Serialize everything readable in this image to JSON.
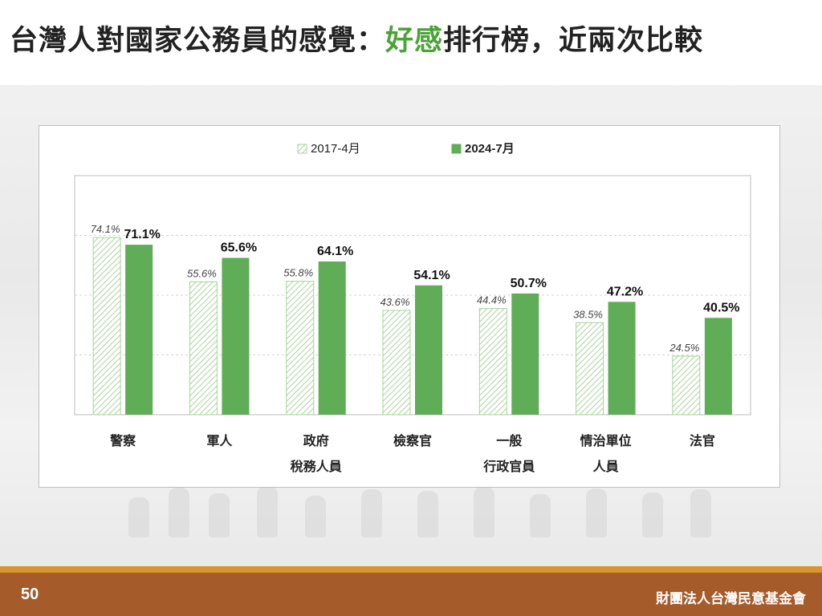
{
  "slide": {
    "title_part1": "台灣人對國家公務員的感覺：",
    "title_highlight": "好感",
    "title_part2": "排行榜，近兩次比較",
    "page_number": "50",
    "organization": "財團法人台灣民意基金會"
  },
  "colors": {
    "accent_green": "#4aa336",
    "series_2024": "#5fad56",
    "series_2017_hatch": "#a8d39a",
    "footer_brown": "#a65b2a",
    "footer_strip": "#d8942e"
  },
  "chart_data": {
    "type": "bar",
    "title": "",
    "xlabel": "",
    "ylabel": "",
    "ylim": [
      0,
      100
    ],
    "grid": true,
    "legend_position": "top-center",
    "categories": [
      [
        "警察"
      ],
      [
        "軍人"
      ],
      [
        "政府",
        "稅務人員"
      ],
      [
        "檢察官"
      ],
      [
        "一般",
        "行政官員"
      ],
      [
        "情治單位",
        "人員"
      ],
      [
        "法官"
      ]
    ],
    "series": [
      {
        "name": "2017-4月",
        "values": [
          74.1,
          55.6,
          55.8,
          43.6,
          44.4,
          38.5,
          24.5
        ],
        "labels": [
          "74.1%",
          "55.6%",
          "55.8%",
          "43.6%",
          "44.4%",
          "38.5%",
          "24.5%"
        ]
      },
      {
        "name": "2024-7月",
        "values": [
          71.1,
          65.6,
          64.1,
          54.1,
          50.7,
          47.2,
          40.5
        ],
        "labels": [
          "71.1%",
          "65.6%",
          "64.1%",
          "54.1%",
          "50.7%",
          "47.2%",
          "40.5%"
        ]
      }
    ]
  }
}
